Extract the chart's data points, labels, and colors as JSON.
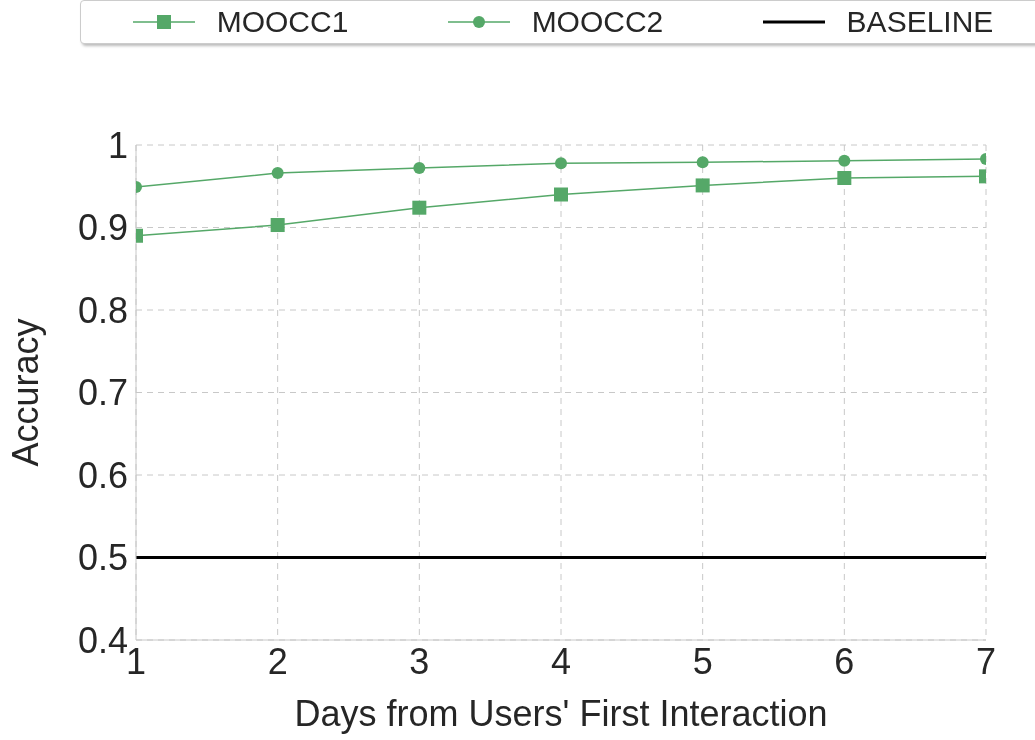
{
  "chart_data": {
    "type": "line",
    "xlabel": "Days from Users' First Interaction",
    "ylabel": "Accuracy",
    "x": [
      1,
      2,
      3,
      4,
      5,
      6,
      7
    ],
    "series": [
      {
        "name": "MOOCC1",
        "color": "#55a868",
        "marker": "square",
        "values": [
          0.89,
          0.903,
          0.924,
          0.94,
          0.951,
          0.96,
          0.962
        ]
      },
      {
        "name": "MOOCC2",
        "color": "#55a868",
        "marker": "circle",
        "values": [
          0.949,
          0.966,
          0.972,
          0.978,
          0.979,
          0.981,
          0.983
        ]
      },
      {
        "name": "BASELINE",
        "color": "#000000",
        "marker": "none",
        "values": [
          0.5,
          0.5,
          0.5,
          0.5,
          0.5,
          0.5,
          0.5
        ]
      }
    ],
    "xlim": [
      1,
      7
    ],
    "xticks": [
      1,
      2,
      3,
      4,
      5,
      6,
      7
    ],
    "ylim": [
      0.4,
      1
    ],
    "yticks": [
      0.4,
      0.5,
      0.6,
      0.7,
      0.8,
      0.9,
      1
    ],
    "grid": true,
    "legend": "top",
    "line_style": "solid"
  }
}
